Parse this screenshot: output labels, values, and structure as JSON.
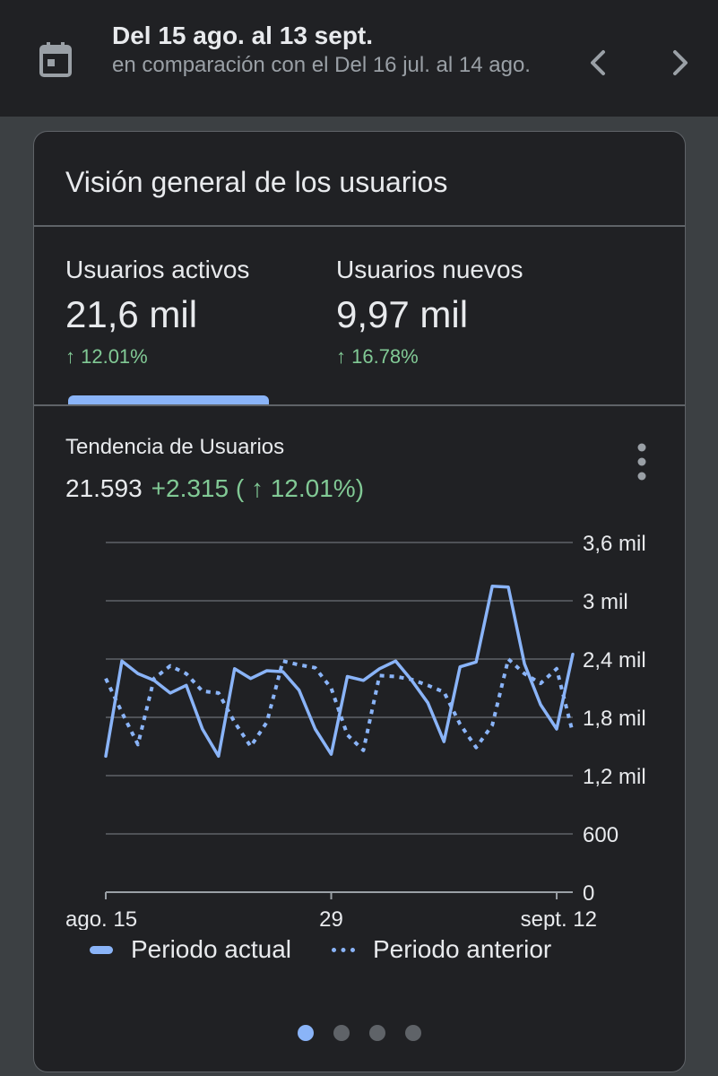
{
  "header": {
    "range_title": "Del 15 ago. al 13 sept.",
    "range_compare": "en comparación con el Del 16 jul. al 14 ago."
  },
  "card": {
    "title": "Visión general de los usuarios",
    "metrics": [
      {
        "label": "Usuarios activos",
        "value": "21,6 mil",
        "delta": "↑ 12.01%"
      },
      {
        "label": "Usuarios nuevos",
        "value": "9,97 mil",
        "delta": "↑ 16.78%"
      }
    ],
    "trend": {
      "title": "Tendencia de Usuarios",
      "total": "21.593",
      "change": "+2.315 ( ↑ 12.01%)"
    },
    "legend": {
      "current": "Periodo actual",
      "previous": "Periodo anterior"
    },
    "pager": {
      "count": 4,
      "active_index": 0
    }
  },
  "colors": {
    "accent": "#8ab4f8",
    "positive": "#81c995",
    "background": "#202124",
    "outer": "#3c4043"
  },
  "chart_data": {
    "type": "line",
    "x_tick_labels": [
      "ago. 15",
      "29",
      "sept. 12"
    ],
    "x_tick_positions": [
      0,
      14,
      28
    ],
    "y_tick_labels": [
      "3,6 mil",
      "3 mil",
      "2,4 mil",
      "1,8 mil",
      "1,2 mil",
      "600",
      "0"
    ],
    "y_tick_values": [
      3600,
      3000,
      2400,
      1800,
      1200,
      600,
      0
    ],
    "ylim": [
      0,
      3600
    ],
    "xlim": [
      0,
      29
    ],
    "series": [
      {
        "name": "Periodo actual",
        "style": "solid",
        "values": [
          1400,
          2380,
          2250,
          2180,
          2050,
          2130,
          1680,
          1400,
          2300,
          2200,
          2280,
          2270,
          2080,
          1680,
          1420,
          2220,
          2180,
          2300,
          2380,
          2180,
          1950,
          1550,
          2320,
          2370,
          3150,
          3140,
          2350,
          1930,
          1680,
          2450
        ]
      },
      {
        "name": "Periodo anterior",
        "style": "dotted",
        "values": [
          2200,
          1850,
          1520,
          2200,
          2330,
          2250,
          2070,
          2050,
          1750,
          1500,
          1750,
          2380,
          2340,
          2310,
          2100,
          1620,
          1460,
          2230,
          2220,
          2190,
          2130,
          2060,
          1730,
          1490,
          1720,
          2400,
          2250,
          2150,
          2300,
          1640
        ]
      }
    ]
  }
}
